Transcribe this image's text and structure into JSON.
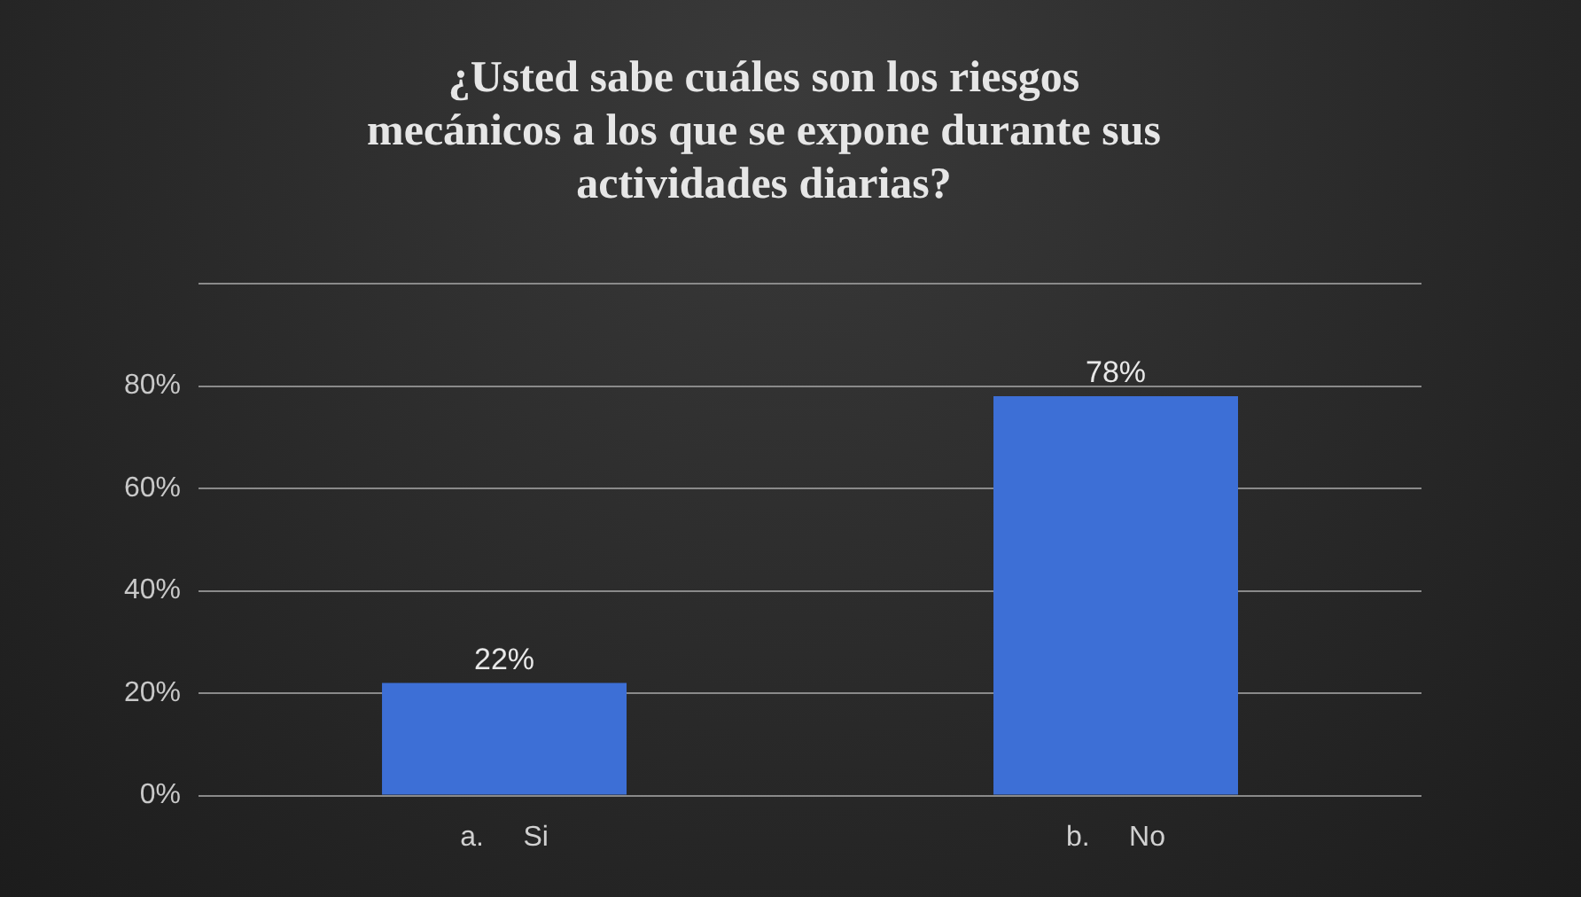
{
  "chart_data": {
    "type": "bar",
    "title": "¿Usted sabe cuáles son los riesgos mecánicos a los que se expone durante sus actividades diarias?",
    "categories": [
      "a.     Si",
      "b.     No"
    ],
    "values": [
      22,
      78
    ],
    "value_labels": [
      "22%",
      "78%"
    ],
    "color": "#3d6fd6",
    "ylim": [
      0,
      100
    ],
    "yticks": [
      {
        "value": 0,
        "label": "0%"
      },
      {
        "value": 20,
        "label": "20%"
      },
      {
        "value": 40,
        "label": "40%"
      },
      {
        "value": 60,
        "label": "60%"
      },
      {
        "value": 80,
        "label": "80%"
      },
      {
        "value": 100,
        "label": null
      }
    ],
    "grid": "y"
  }
}
